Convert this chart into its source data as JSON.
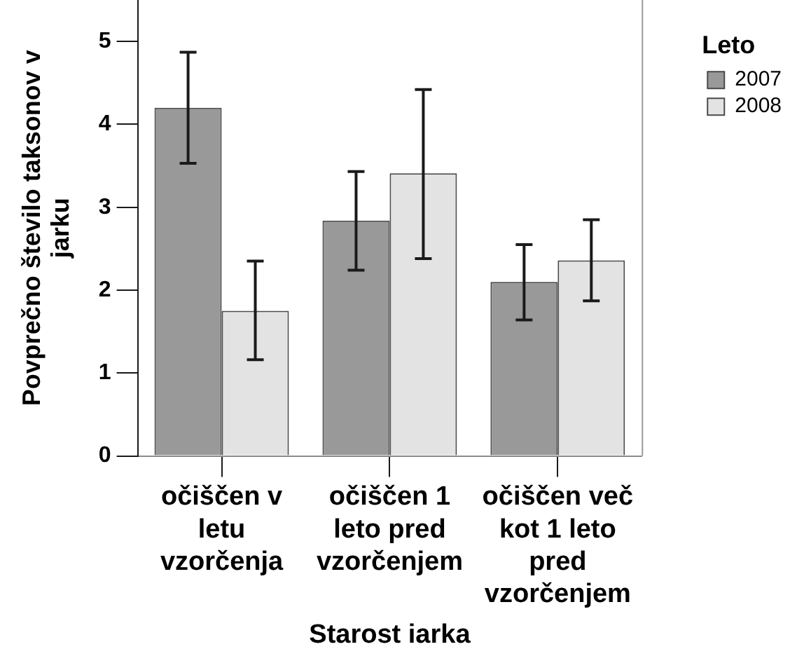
{
  "chart_data": {
    "type": "bar",
    "xlabel": "Starost iarka",
    "ylabel": "Povprečno število taksonov v jarku",
    "legend_title": "Leto",
    "categories": [
      "očiščen v letu vzorčenja",
      "očiščen 1 leto pred vzorčenjem",
      "očiščen več kot 1 leto pred vzorčenjem"
    ],
    "series": [
      {
        "name": "2007",
        "color": "#999999",
        "values": [
          4.2,
          2.84,
          2.1
        ],
        "errors": [
          [
            3.53,
            4.87
          ],
          [
            2.24,
            3.43
          ],
          [
            1.64,
            2.55
          ]
        ]
      },
      {
        "name": "2008",
        "color": "#e3e3e3",
        "values": [
          1.75,
          3.41,
          2.36
        ],
        "errors": [
          [
            1.16,
            2.35
          ],
          [
            2.38,
            4.42
          ],
          [
            1.87,
            2.85
          ]
        ]
      }
    ],
    "ylim": [
      0,
      5.5
    ],
    "yticks": [
      0,
      1,
      2,
      3,
      4,
      5
    ],
    "grid": false,
    "legend": "top right"
  }
}
